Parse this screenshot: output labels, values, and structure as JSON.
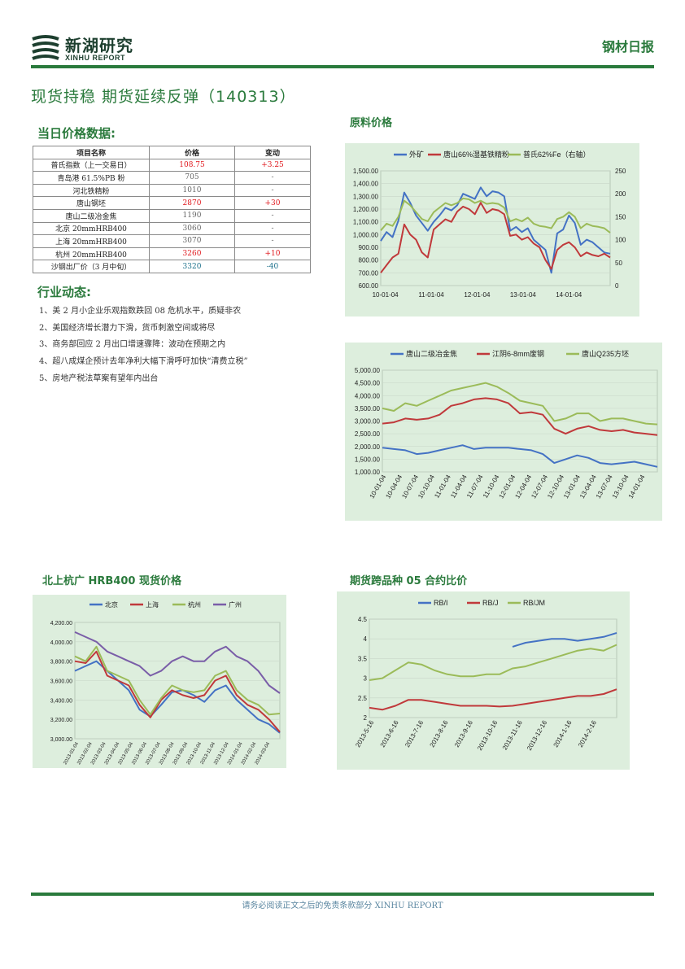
{
  "header": {
    "logo_name": "新湖研究",
    "logo_sub": "XINHU REPORT",
    "report_type": "钢材日报"
  },
  "title": "现货持稳 期货延续反弹（140313）",
  "price_section": {
    "heading": "当日价格数据:",
    "columns": [
      "项目名称",
      "价格",
      "变动"
    ],
    "rows": [
      {
        "name": "普氏指数（上一交易日）",
        "price": "108.75",
        "change": "+3.25",
        "price_color": "red",
        "change_color": "red"
      },
      {
        "name": "青岛港 61.5%PB 粉",
        "price": "705",
        "change": "-",
        "price_color": "grey",
        "change_color": "grey"
      },
      {
        "name": "河北铁精粉",
        "price": "1010",
        "change": "-",
        "price_color": "grey",
        "change_color": "grey"
      },
      {
        "name": "唐山钢坯",
        "price": "2870",
        "change": "+30",
        "price_color": "red",
        "change_color": "red"
      },
      {
        "name": "唐山二级冶金焦",
        "price": "1190",
        "change": "-",
        "price_color": "grey",
        "change_color": "grey"
      },
      {
        "name": "北京 20mmHRB400",
        "price": "3060",
        "change": "-",
        "price_color": "grey",
        "change_color": "grey"
      },
      {
        "name": "上海 20mmHRB400",
        "price": "3070",
        "change": "-",
        "price_color": "grey",
        "change_color": "grey"
      },
      {
        "name": "杭州 20mmHRB400",
        "price": "3260",
        "change": "+10",
        "price_color": "red",
        "change_color": "red"
      },
      {
        "name": "沙钢出厂价（3 月中旬）",
        "price": "3320",
        "change": "-40",
        "price_color": "teal",
        "change_color": "teal"
      }
    ]
  },
  "news_section": {
    "heading": "行业动态:",
    "items": [
      "1、美 2 月小企业乐观指数跌回 08 危机水平，质疑非农",
      "2、美国经济增长潜力下滑，货币刺激空间或将尽",
      "3、商务部回应 2 月出口增速骤降：波动在预期之内",
      "4、超八成煤企预计去年净利大幅下滑呼吁加快“清费立税”",
      "5、房地产税法草案有望年内出台"
    ]
  },
  "charts": {
    "raw_heading": "原料价格",
    "hrb_heading": "北上杭广 HRB400 现货价格",
    "ratio_heading": "期货跨品种 05 合约比价"
  },
  "footer": {
    "text": "请务必阅读正文之后的免责条款部分 XINHU REPORT"
  },
  "colors": {
    "brand": "#2a7a3c",
    "blue": "#4472c4",
    "red": "#c0393b",
    "green": "#9bbb59",
    "purple": "#7a5ea8"
  },
  "chart_data": [
    {
      "id": "raw-materials",
      "type": "line",
      "title": "原料价格",
      "x_ticks": [
        "10-01-04",
        "11-01-04",
        "12-01-04",
        "13-01-04",
        "14-01-04"
      ],
      "y_ticks_left": [
        "600.00",
        "700.00",
        "800.00",
        "900.00",
        "1,000.00",
        "1,100.00",
        "1,200.00",
        "1,300.00",
        "1,400.00",
        "1,500.00"
      ],
      "y_ticks_right": [
        "0",
        "50",
        "100",
        "150",
        "200",
        "250"
      ],
      "ylim": [
        600,
        1500
      ],
      "ylim_right": [
        0,
        250
      ],
      "series": [
        {
          "name": "外矿",
          "color": "blue",
          "axis": "left",
          "values": [
            950,
            1020,
            980,
            1110,
            1330,
            1250,
            1150,
            1090,
            1030,
            1100,
            1150,
            1210,
            1190,
            1230,
            1320,
            1300,
            1280,
            1370,
            1300,
            1340,
            1330,
            1300,
            1030,
            1060,
            1020,
            1050,
            960,
            920,
            880,
            700,
            1010,
            1040,
            1150,
            1090,
            920,
            960,
            940,
            900,
            860,
            850
          ]
        },
        {
          "name": "唐山66%湿基铁精粉",
          "color": "red",
          "axis": "left",
          "values": [
            700,
            760,
            820,
            850,
            1080,
            1000,
            960,
            860,
            820,
            1040,
            1080,
            1120,
            1100,
            1180,
            1220,
            1200,
            1160,
            1250,
            1170,
            1200,
            1190,
            1160,
            990,
            1000,
            960,
            980,
            930,
            900,
            800,
            730,
            880,
            920,
            940,
            900,
            830,
            860,
            840,
            830,
            850,
            820
          ]
        },
        {
          "name": "普氏62%Fe（右轴）",
          "color": "green",
          "axis": "right",
          "values": [
            120,
            135,
            130,
            150,
            185,
            175,
            160,
            145,
            140,
            160,
            170,
            180,
            175,
            180,
            190,
            188,
            180,
            185,
            178,
            180,
            178,
            170,
            140,
            145,
            140,
            148,
            135,
            130,
            128,
            125,
            145,
            150,
            160,
            150,
            125,
            135,
            130,
            128,
            125,
            115
          ]
        }
      ]
    },
    {
      "id": "coke-scrap-billet",
      "type": "line",
      "x_ticks": [
        "10-01-04",
        "10-04-04",
        "10-07-04",
        "10-10-04",
        "11-01-04",
        "11-04-04",
        "11-07-04",
        "11-10-04",
        "12-01-04",
        "12-04-04",
        "12-07-04",
        "12-10-04",
        "13-01-04",
        "13-04-04",
        "13-07-04",
        "13-10-04",
        "14-01-04"
      ],
      "y_ticks": [
        "1,000.00",
        "1,500.00",
        "2,000.00",
        "2,500.00",
        "3,000.00",
        "3,500.00",
        "4,000.00",
        "4,500.00",
        "5,000.00"
      ],
      "ylim": [
        1000,
        5000
      ],
      "series": [
        {
          "name": "唐山二级冶金焦",
          "color": "blue",
          "values": [
            1950,
            1900,
            1850,
            1700,
            1750,
            1850,
            1950,
            2050,
            1900,
            1950,
            1950,
            1950,
            1900,
            1850,
            1700,
            1350,
            1500,
            1650,
            1550,
            1350,
            1300,
            1350,
            1400,
            1300,
            1200
          ]
        },
        {
          "name": "江阴6-8mm废钢",
          "color": "red",
          "values": [
            2900,
            2950,
            3100,
            3050,
            3100,
            3250,
            3600,
            3700,
            3850,
            3900,
            3850,
            3700,
            3300,
            3350,
            3250,
            2700,
            2500,
            2700,
            2800,
            2650,
            2600,
            2650,
            2550,
            2500,
            2450
          ]
        },
        {
          "name": "唐山Q235方坯",
          "color": "green",
          "values": [
            3500,
            3400,
            3700,
            3600,
            3800,
            4000,
            4200,
            4300,
            4400,
            4500,
            4350,
            4100,
            3800,
            3700,
            3600,
            3000,
            3100,
            3300,
            3300,
            3000,
            3100,
            3100,
            3000,
            2900,
            2870
          ]
        }
      ]
    },
    {
      "id": "hrb400-spot",
      "type": "line",
      "title": "北上杭广 HRB400 现货价格",
      "x_ticks": [
        "2013-01-04",
        "2013-02-04",
        "2013-03-04",
        "2013-04-04",
        "2013-05-04",
        "2013-06-04",
        "2013-07-04",
        "2013-08-04",
        "2013-09-04",
        "2013-10-04",
        "2013-11-04",
        "2013-12-04",
        "2014-01-04",
        "2014-02-04",
        "2014-03-04"
      ],
      "y_ticks": [
        "3,000.00",
        "3,200.00",
        "3,400.00",
        "3,600.00",
        "3,800.00",
        "4,000.00",
        "4,200.00"
      ],
      "ylim": [
        3000,
        4200
      ],
      "series": [
        {
          "name": "北京",
          "color": "blue",
          "values": [
            3700,
            3750,
            3800,
            3700,
            3600,
            3500,
            3300,
            3230,
            3350,
            3480,
            3500,
            3450,
            3380,
            3500,
            3550,
            3400,
            3300,
            3200,
            3150,
            3060
          ]
        },
        {
          "name": "上海",
          "color": "red",
          "values": [
            3800,
            3780,
            3900,
            3650,
            3600,
            3550,
            3350,
            3220,
            3400,
            3500,
            3450,
            3420,
            3450,
            3600,
            3650,
            3450,
            3350,
            3300,
            3200,
            3070
          ]
        },
        {
          "name": "杭州",
          "color": "green",
          "values": [
            3850,
            3800,
            3950,
            3700,
            3650,
            3600,
            3400,
            3250,
            3420,
            3550,
            3500,
            3480,
            3500,
            3650,
            3700,
            3500,
            3400,
            3350,
            3250,
            3260
          ]
        },
        {
          "name": "广州",
          "color": "purple",
          "values": [
            4100,
            4050,
            4000,
            3900,
            3850,
            3800,
            3750,
            3650,
            3700,
            3800,
            3850,
            3800,
            3800,
            3900,
            3950,
            3850,
            3800,
            3700,
            3550,
            3470
          ]
        }
      ]
    },
    {
      "id": "futures-ratio",
      "type": "line",
      "title": "期货跨品种 05 合约比价",
      "x_ticks": [
        "2013-5-16",
        "2013-6-16",
        "2013-7-16",
        "2013-8-16",
        "2013-9-16",
        "2013-10-16",
        "2013-11-16",
        "2013-12-16",
        "2014-1-16",
        "2014-2-16"
      ],
      "y_ticks": [
        "2",
        "2.5",
        "3",
        "3.5",
        "4",
        "4.5"
      ],
      "ylim": [
        2,
        4.5
      ],
      "series": [
        {
          "name": "RB/I",
          "color": "blue",
          "values": [
            null,
            null,
            null,
            null,
            null,
            null,
            null,
            null,
            null,
            null,
            null,
            3.8,
            3.9,
            3.95,
            4.0,
            4.0,
            3.95,
            4.0,
            4.05,
            4.15
          ]
        },
        {
          "name": "RB/J",
          "color": "red",
          "values": [
            2.25,
            2.2,
            2.3,
            2.45,
            2.45,
            2.4,
            2.35,
            2.3,
            2.3,
            2.3,
            2.28,
            2.3,
            2.35,
            2.4,
            2.45,
            2.5,
            2.55,
            2.55,
            2.6,
            2.72
          ]
        },
        {
          "name": "RB/JM",
          "color": "green",
          "values": [
            2.95,
            3.0,
            3.2,
            3.4,
            3.35,
            3.2,
            3.1,
            3.05,
            3.05,
            3.1,
            3.1,
            3.25,
            3.3,
            3.4,
            3.5,
            3.6,
            3.7,
            3.75,
            3.7,
            3.85
          ]
        }
      ]
    }
  ]
}
